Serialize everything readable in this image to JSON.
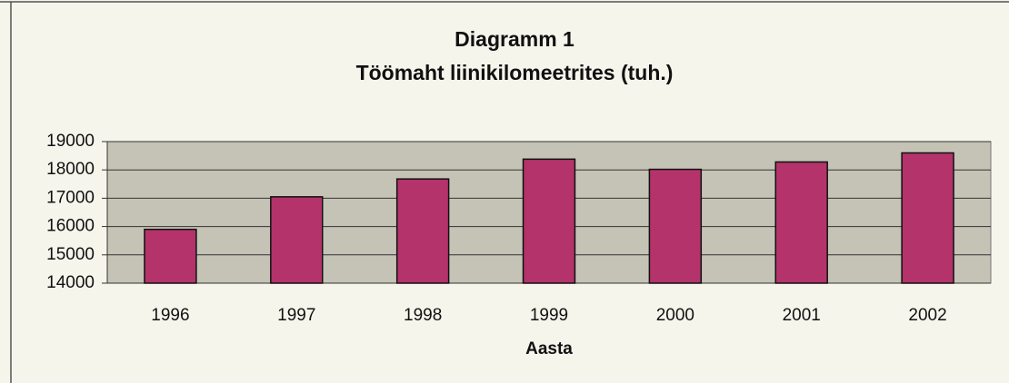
{
  "chart_data": {
    "type": "bar",
    "title": "Diagramm 1",
    "subtitle": "Töömaht liinikilomeetrites (tuh.)",
    "x_label": "Aasta",
    "categories": [
      "1996",
      "1997",
      "1998",
      "1999",
      "2000",
      "2001",
      "2002"
    ],
    "values": [
      15900,
      17050,
      17680,
      18380,
      18020,
      18280,
      18600
    ],
    "color": "#b3336a",
    "ylim": [
      14000,
      19000
    ],
    "yticks": [
      14000,
      15000,
      16000,
      17000,
      18000,
      19000
    ],
    "grid": true
  }
}
